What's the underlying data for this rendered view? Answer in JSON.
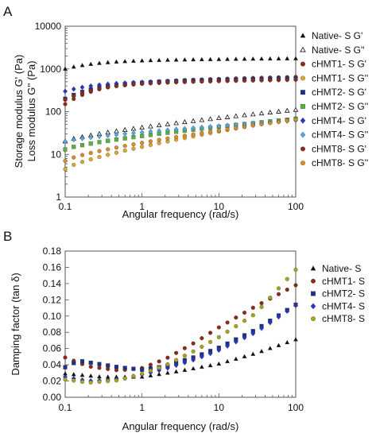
{
  "colors": {
    "native": "#111111",
    "cHMT1": "#8b2a1c",
    "cHMT2": "#1c2f8c",
    "cHMT4": "#2733c9",
    "cHMT8": "#a7a51a",
    "cHMT1_loss": "#d6a92a",
    "cHMT2_loss": "#59b33b",
    "cHMT4_loss": "#52a7e2",
    "cHMT8_loss": "#d98a2b"
  },
  "chart_data": [
    {
      "panel_label": "A",
      "type": "scatter",
      "xlabel": "Angular frequency (rad/s)",
      "ylabel_lines": [
        "Storage modulus G' (Pa)",
        "Loss modulus G'' (Pa)"
      ],
      "xscale": "log",
      "yscale": "log",
      "xlim": [
        0.1,
        100
      ],
      "ylim": [
        1,
        10000
      ],
      "x_ticks": [
        "0.1",
        "1",
        "10",
        "100"
      ],
      "y_ticks": [
        "1",
        "10",
        "100",
        "1000",
        "10000"
      ],
      "legend_position": "right",
      "series": [
        {
          "name": "Native- S G'",
          "marker": "triangle",
          "fill": "solid",
          "color_key": "native",
          "start": 1000,
          "end": 1750
        },
        {
          "name": "Native- S G''",
          "marker": "triangle",
          "fill": "open",
          "color_key": "native",
          "start": 20,
          "end": 110
        },
        {
          "name": "cHMT1- S G'",
          "marker": "circle",
          "fill": "solid",
          "color_key": "cHMT1",
          "start": 150,
          "end": 650
        },
        {
          "name": "cHMT1- S G''",
          "marker": "circle",
          "fill": "solid",
          "color_key": "cHMT1_loss",
          "start": 4.5,
          "end": 70
        },
        {
          "name": "cHMT2- S G'",
          "marker": "square",
          "fill": "solid",
          "color_key": "cHMT2",
          "start": 200,
          "end": 600
        },
        {
          "name": "cHMT2- S G''",
          "marker": "square",
          "fill": "solid",
          "color_key": "cHMT2_loss",
          "start": 13,
          "end": 68
        },
        {
          "name": "cHMT4- S G'",
          "marker": "diamond",
          "fill": "solid",
          "color_key": "cHMT4",
          "start": 300,
          "end": 560
        },
        {
          "name": "cHMT4- S G''",
          "marker": "diamond",
          "fill": "solid",
          "color_key": "cHMT4_loss",
          "start": 20,
          "end": 62
        },
        {
          "name": "cHMT8- S G'",
          "marker": "circle",
          "fill": "solid",
          "color_key": "cHMT1",
          "start": 190,
          "end": 560
        },
        {
          "name": "cHMT8- S G''",
          "marker": "circle",
          "fill": "solid",
          "color_key": "cHMT8_loss",
          "start": 7,
          "end": 65
        }
      ]
    },
    {
      "panel_label": "B",
      "type": "scatter",
      "xlabel": "Angular frequency (rad/s)",
      "ylabel": "Damping factor (tan δ)",
      "xscale": "log",
      "xlim": [
        0.1,
        100
      ],
      "ylim": [
        0,
        0.18
      ],
      "x_ticks": [
        "0.1",
        "1",
        "10",
        "100"
      ],
      "y_ticks": [
        "0.00",
        "0.02",
        "0.04",
        "0.06",
        "0.08",
        "0.10",
        "0.12",
        "0.14",
        "0.16",
        "0.18"
      ],
      "legend_position": "top-right",
      "series": [
        {
          "name": "Native- S",
          "marker": "triangle",
          "color_key": "native",
          "points": [
            [
              0.1,
              0.029
            ],
            [
              0.3,
              0.025
            ],
            [
              1,
              0.025
            ],
            [
              3,
              0.032
            ],
            [
              10,
              0.041
            ],
            [
              30,
              0.054
            ],
            [
              100,
              0.071
            ]
          ]
        },
        {
          "name": "cHMT1- S",
          "marker": "circle",
          "color_key": "cHMT1",
          "points": [
            [
              0.1,
              0.049
            ],
            [
              0.2,
              0.038
            ],
            [
              0.5,
              0.033
            ],
            [
              1,
              0.036
            ],
            [
              2,
              0.047
            ],
            [
              5,
              0.068
            ],
            [
              10,
              0.086
            ],
            [
              30,
              0.112
            ],
            [
              100,
              0.138
            ]
          ]
        },
        {
          "name": "cHMT2- S",
          "marker": "square",
          "color_key": "cHMT2",
          "points": [
            [
              0.1,
              0.037
            ],
            [
              0.15,
              0.045
            ],
            [
              0.5,
              0.037
            ],
            [
              1,
              0.034
            ],
            [
              2,
              0.038
            ],
            [
              5,
              0.05
            ],
            [
              10,
              0.061
            ],
            [
              30,
              0.083
            ],
            [
              100,
              0.114
            ]
          ]
        },
        {
          "name": "cHMT4- S",
          "marker": "diamond",
          "color_key": "cHMT4",
          "points": [
            [
              0.1,
              0.025
            ],
            [
              0.2,
              0.02
            ],
            [
              0.5,
              0.022
            ],
            [
              1,
              0.028
            ],
            [
              2,
              0.035
            ],
            [
              5,
              0.047
            ],
            [
              10,
              0.058
            ],
            [
              30,
              0.08
            ],
            [
              100,
              0.113
            ]
          ]
        },
        {
          "name": "cHMT8- S",
          "marker": "circle",
          "color_key": "cHMT8",
          "points": [
            [
              0.1,
              0.022
            ],
            [
              0.2,
              0.018
            ],
            [
              0.5,
              0.021
            ],
            [
              1,
              0.029
            ],
            [
              2,
              0.039
            ],
            [
              5,
              0.058
            ],
            [
              10,
              0.074
            ],
            [
              30,
              0.103
            ],
            [
              100,
              0.157
            ]
          ]
        }
      ]
    }
  ]
}
